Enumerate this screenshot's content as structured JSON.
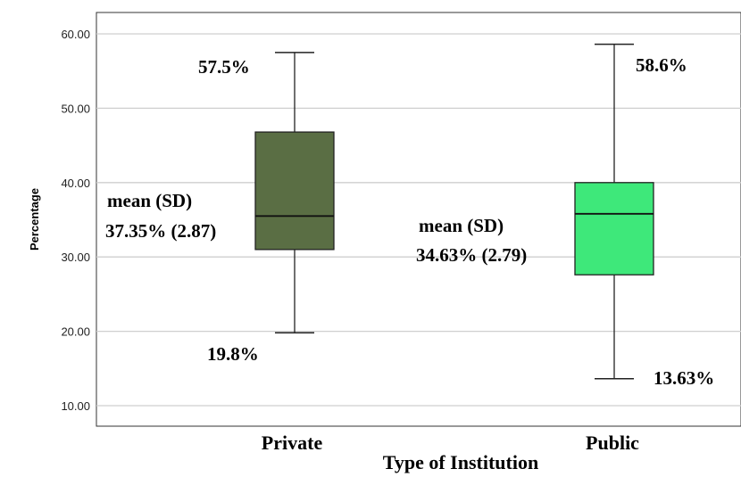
{
  "chart_data": {
    "type": "box",
    "xlabel": "Type of Institution",
    "ylabel": "Percentage",
    "ylim": [
      7,
      62
    ],
    "yticks": [
      "10.00",
      "20.00",
      "30.00",
      "40.00",
      "50.00",
      "60.00"
    ],
    "grid": true,
    "categories": [
      "Private",
      "Public"
    ],
    "boxes": [
      {
        "category": "Private",
        "min": 19.8,
        "q1": 31.0,
        "median": 35.5,
        "q3": 46.8,
        "max": 57.5,
        "color": "#5a6e44"
      },
      {
        "category": "Public",
        "min": 13.63,
        "q1": 27.6,
        "median": 35.8,
        "q3": 40.0,
        "max": 58.6,
        "color": "#3ee87a"
      }
    ],
    "annotations": {
      "private_max": "57.5%",
      "private_min": "19.8%",
      "private_mean_title": "mean (SD)",
      "private_mean_value": "37.35% (2.87)",
      "public_max": "58.6%",
      "public_min": "13.63%",
      "public_mean_title": "mean (SD)",
      "public_mean_value": "34.63% (2.79)"
    }
  }
}
